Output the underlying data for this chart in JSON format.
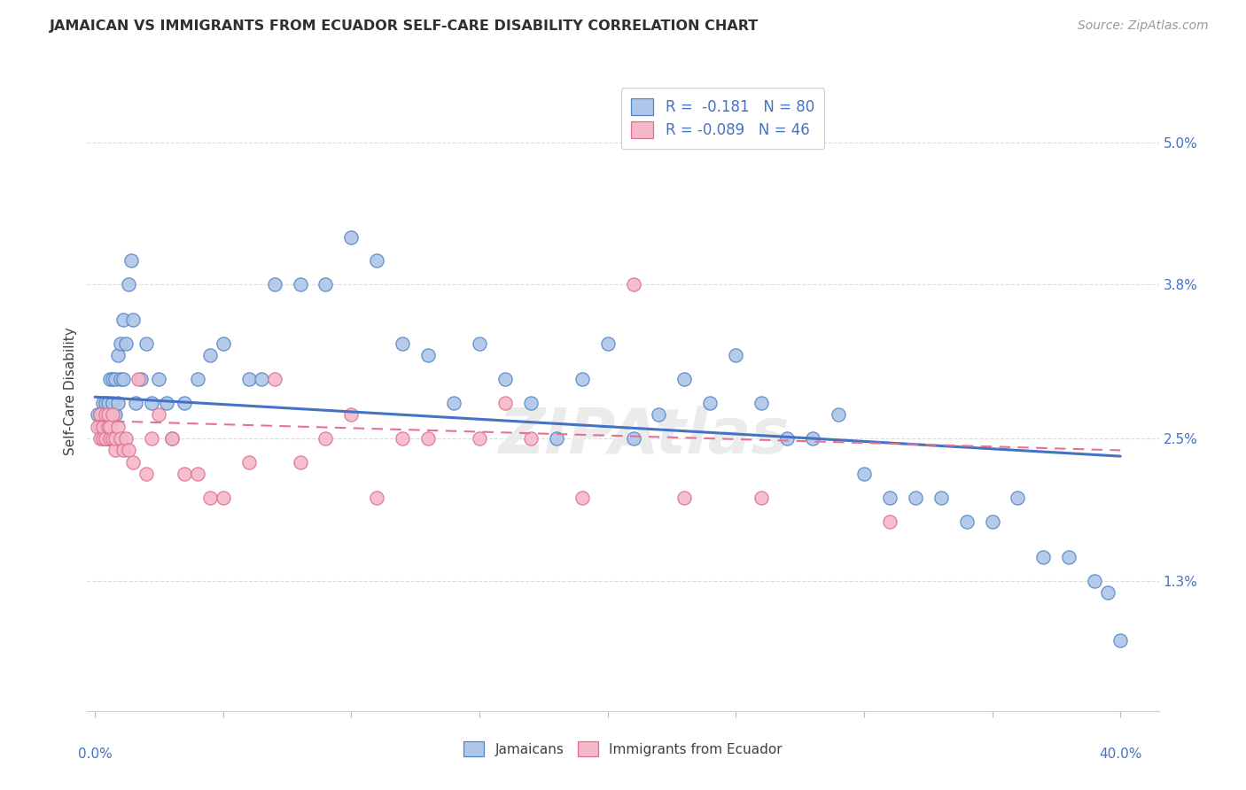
{
  "title": "JAMAICAN VS IMMIGRANTS FROM ECUADOR SELF-CARE DISABILITY CORRELATION CHART",
  "source": "Source: ZipAtlas.com",
  "ylabel": "Self-Care Disability",
  "ymin": 0.002,
  "ymax": 0.056,
  "xmin": -0.003,
  "xmax": 0.415,
  "color_jamaican_face": "#aec6e8",
  "color_jamaican_edge": "#5585c5",
  "color_ecuador_face": "#f4b8c8",
  "color_ecuador_edge": "#e07090",
  "color_blue_line": "#4472c4",
  "color_pink_line": "#e87090",
  "color_axis_text": "#4472c4",
  "color_title": "#303030",
  "color_source": "#999999",
  "watermark": "ZIPAtlas",
  "ytick_vals": [
    0.013,
    0.025,
    0.038,
    0.05
  ],
  "ytick_labels": [
    "1.3%",
    "2.5%",
    "3.8%",
    "5.0%"
  ],
  "xtick_minor_count": 8,
  "trend_j_x0": 0.0,
  "trend_j_y0": 0.0285,
  "trend_j_x1": 0.4,
  "trend_j_y1": 0.0235,
  "trend_e_x0": 0.0,
  "trend_e_y0": 0.0265,
  "trend_e_x1": 0.4,
  "trend_e_y1": 0.024,
  "legend_labels": [
    "R =  -0.181   N = 80",
    "R = -0.089   N = 46"
  ],
  "bottom_labels": [
    "Jamaicans",
    "Immigrants from Ecuador"
  ],
  "j_x": [
    0.001,
    0.002,
    0.002,
    0.003,
    0.003,
    0.003,
    0.004,
    0.004,
    0.004,
    0.005,
    0.005,
    0.005,
    0.005,
    0.006,
    0.006,
    0.006,
    0.006,
    0.007,
    0.007,
    0.007,
    0.008,
    0.008,
    0.009,
    0.009,
    0.01,
    0.01,
    0.011,
    0.011,
    0.012,
    0.013,
    0.014,
    0.015,
    0.016,
    0.018,
    0.02,
    0.022,
    0.025,
    0.028,
    0.03,
    0.035,
    0.04,
    0.045,
    0.05,
    0.06,
    0.065,
    0.07,
    0.08,
    0.09,
    0.1,
    0.11,
    0.12,
    0.13,
    0.14,
    0.15,
    0.16,
    0.17,
    0.18,
    0.19,
    0.2,
    0.21,
    0.22,
    0.23,
    0.24,
    0.25,
    0.26,
    0.27,
    0.28,
    0.29,
    0.3,
    0.31,
    0.32,
    0.33,
    0.34,
    0.35,
    0.36,
    0.37,
    0.38,
    0.39,
    0.395,
    0.4
  ],
  "j_y": [
    0.027,
    0.026,
    0.027,
    0.025,
    0.026,
    0.028,
    0.025,
    0.027,
    0.028,
    0.025,
    0.026,
    0.027,
    0.028,
    0.025,
    0.026,
    0.027,
    0.03,
    0.027,
    0.028,
    0.03,
    0.027,
    0.03,
    0.028,
    0.032,
    0.03,
    0.033,
    0.03,
    0.035,
    0.033,
    0.038,
    0.04,
    0.035,
    0.028,
    0.03,
    0.033,
    0.028,
    0.03,
    0.028,
    0.025,
    0.028,
    0.03,
    0.032,
    0.033,
    0.03,
    0.03,
    0.038,
    0.038,
    0.038,
    0.042,
    0.04,
    0.033,
    0.032,
    0.028,
    0.033,
    0.03,
    0.028,
    0.025,
    0.03,
    0.033,
    0.025,
    0.027,
    0.03,
    0.028,
    0.032,
    0.028,
    0.025,
    0.025,
    0.027,
    0.022,
    0.02,
    0.02,
    0.02,
    0.018,
    0.018,
    0.02,
    0.015,
    0.015,
    0.013,
    0.012,
    0.008
  ],
  "e_x": [
    0.001,
    0.002,
    0.002,
    0.003,
    0.003,
    0.004,
    0.004,
    0.005,
    0.005,
    0.006,
    0.006,
    0.007,
    0.007,
    0.008,
    0.008,
    0.009,
    0.01,
    0.011,
    0.012,
    0.013,
    0.015,
    0.017,
    0.02,
    0.022,
    0.025,
    0.03,
    0.035,
    0.04,
    0.045,
    0.05,
    0.06,
    0.07,
    0.08,
    0.09,
    0.1,
    0.11,
    0.12,
    0.13,
    0.15,
    0.16,
    0.17,
    0.19,
    0.21,
    0.23,
    0.26,
    0.31
  ],
  "e_y": [
    0.026,
    0.025,
    0.027,
    0.025,
    0.026,
    0.025,
    0.027,
    0.026,
    0.027,
    0.025,
    0.026,
    0.025,
    0.027,
    0.024,
    0.025,
    0.026,
    0.025,
    0.024,
    0.025,
    0.024,
    0.023,
    0.03,
    0.022,
    0.025,
    0.027,
    0.025,
    0.022,
    0.022,
    0.02,
    0.02,
    0.023,
    0.03,
    0.023,
    0.025,
    0.027,
    0.02,
    0.025,
    0.025,
    0.025,
    0.028,
    0.025,
    0.02,
    0.038,
    0.02,
    0.02,
    0.018
  ]
}
